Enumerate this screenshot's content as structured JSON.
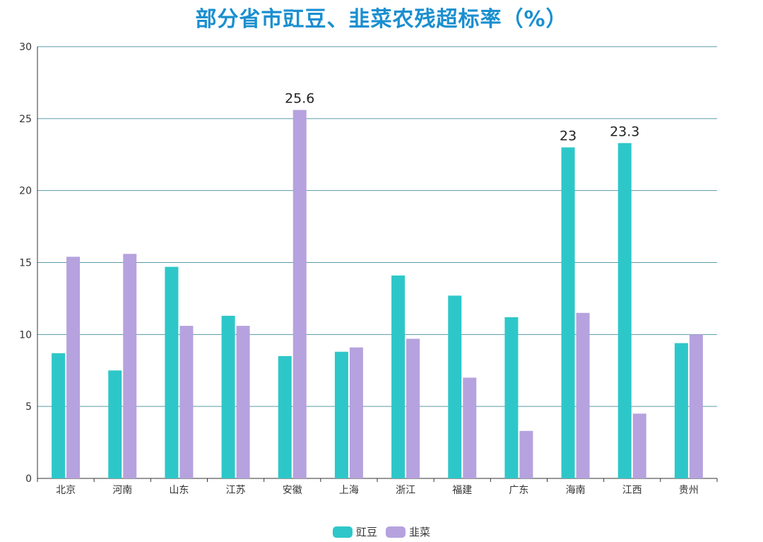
{
  "chart_data": {
    "type": "bar",
    "title": "部分省市豇豆、韭菜农残超标率（%）",
    "categories": [
      "北京",
      "河南",
      "山东",
      "江苏",
      "安徽",
      "上海",
      "浙江",
      "福建",
      "广东",
      "海南",
      "江西",
      "贵州"
    ],
    "series": [
      {
        "name": "豇豆",
        "color": "#2ec7c9",
        "values": [
          8.7,
          7.5,
          14.7,
          11.3,
          8.5,
          8.8,
          14.1,
          12.7,
          11.2,
          23,
          23.3,
          9.4
        ]
      },
      {
        "name": "韭菜",
        "color": "#b6a2de",
        "values": [
          15.4,
          15.6,
          10.6,
          10.6,
          25.6,
          9.1,
          9.7,
          7.0,
          3.3,
          11.5,
          4.5,
          10.0
        ]
      }
    ],
    "data_labels": [
      {
        "series": 1,
        "category": "安徽",
        "text": "25.6"
      },
      {
        "series": 0,
        "category": "海南",
        "text": "23"
      },
      {
        "series": 0,
        "category": "江西",
        "text": "23.3"
      }
    ],
    "ylim": [
      0,
      30
    ],
    "yticks": [
      0,
      5,
      10,
      15,
      20,
      25,
      30
    ],
    "grid": true,
    "legend": "bottom-center",
    "xlabel": "",
    "ylabel": ""
  }
}
